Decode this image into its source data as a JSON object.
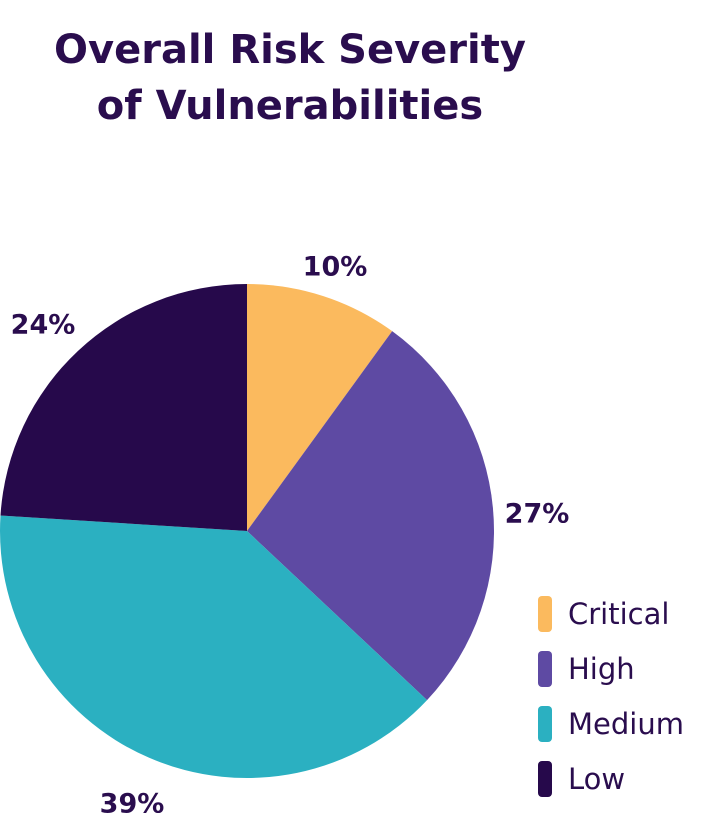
{
  "chart_data": {
    "type": "pie",
    "title_lines": [
      "Overall Risk Severity",
      "of Vulnerabilities"
    ],
    "slices": [
      {
        "name": "Critical",
        "value": 10,
        "label": "10%",
        "color": "#FBBA5E"
      },
      {
        "name": "High",
        "value": 27,
        "label": "27%",
        "color": "#5E4AA3"
      },
      {
        "name": "Medium",
        "value": 39,
        "label": "39%",
        "color": "#2BB0C1"
      },
      {
        "name": "Low",
        "value": 24,
        "label": "24%",
        "color": "#26094B"
      }
    ],
    "legend_position": "bottom-right",
    "start": "top, clockwise"
  }
}
